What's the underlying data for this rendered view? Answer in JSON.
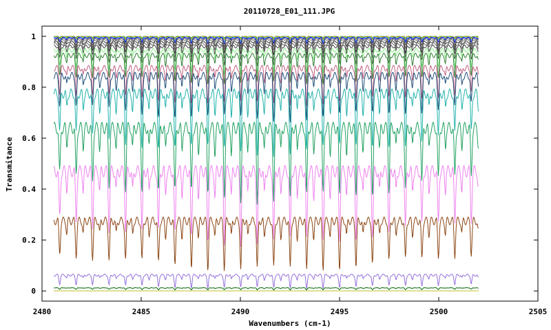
{
  "chart_data": {
    "type": "line",
    "title": "20110728_E01_111.JPG",
    "xlabel": "Wavenumbers (cm-1)",
    "ylabel": "Transmitance",
    "xlim": [
      2480,
      2505
    ],
    "ylim": [
      -0.04,
      1.04
    ],
    "x_ticks": [
      2480,
      2485,
      2490,
      2495,
      2500,
      2505
    ],
    "y_ticks": [
      0,
      0.2,
      0.4,
      0.6,
      0.8,
      1
    ],
    "x_tick_labels": [
      "2480",
      "2485",
      "2490",
      "2495",
      "2500",
      "2505"
    ],
    "y_tick_labels": [
      "0",
      "0.2",
      "0.4",
      "0.6",
      "0.8",
      "1"
    ],
    "x_range_data": [
      2480.6,
      2502.0
    ],
    "grid": false,
    "legend": "none",
    "line_spacing_cm": 0.83,
    "series": [
      {
        "color": "#999999",
        "baseline": 1.0,
        "depth": 0.005
      },
      {
        "color": "#22aa22",
        "baseline": 0.999,
        "depth": 0.008
      },
      {
        "color": "#ffaa00",
        "baseline": 0.998,
        "depth": 0.012
      },
      {
        "color": "#33cccc",
        "baseline": 0.996,
        "depth": 0.016
      },
      {
        "color": "#0000ff",
        "baseline": 0.994,
        "depth": 0.022
      },
      {
        "color": "#555555",
        "baseline": 0.99,
        "depth": 0.03
      },
      {
        "color": "#777777",
        "baseline": 0.985,
        "depth": 0.038
      },
      {
        "color": "#333333",
        "baseline": 0.978,
        "depth": 0.048
      },
      {
        "color": "#666666",
        "baseline": 0.97,
        "depth": 0.06
      },
      {
        "color": "#444444",
        "baseline": 0.96,
        "depth": 0.072
      },
      {
        "color": "#88ee88",
        "baseline": 0.945,
        "depth": 0.09
      },
      {
        "color": "#2e7d32",
        "baseline": 0.925,
        "depth": 0.11
      },
      {
        "color": "#c06080",
        "baseline": 0.875,
        "depth": 0.14
      },
      {
        "color": "#1f4e79",
        "baseline": 0.845,
        "depth": 0.17
      },
      {
        "color": "#20b2aa",
        "baseline": 0.775,
        "depth": 0.23
      },
      {
        "color": "#20a060",
        "baseline": 0.64,
        "depth": 0.28
      },
      {
        "color": "#ee82ee",
        "baseline": 0.47,
        "depth": 0.28
      },
      {
        "color": "#8b4513",
        "baseline": 0.275,
        "depth": 0.19
      },
      {
        "color": "#9370db",
        "baseline": 0.062,
        "depth": 0.05
      },
      {
        "color": "#006400",
        "baseline": 0.012,
        "depth": 0.008
      },
      {
        "color": "#000000",
        "baseline": 0.0,
        "depth": 0.0
      },
      {
        "color": "#ffff66",
        "baseline": 0.0,
        "depth": 0.0
      }
    ]
  }
}
